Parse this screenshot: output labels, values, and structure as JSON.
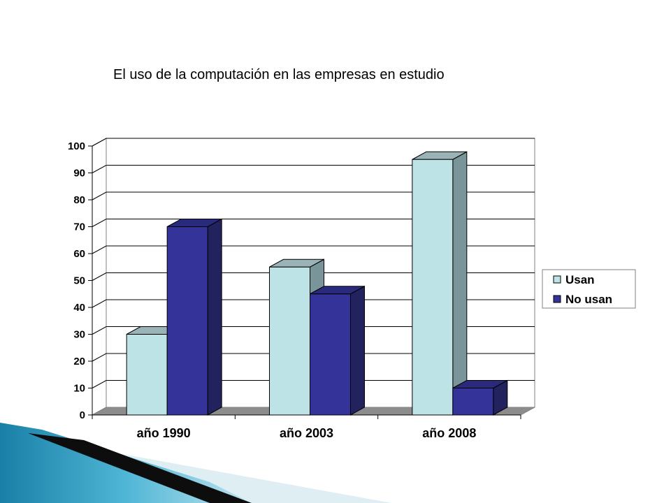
{
  "slide": {
    "title": "El uso de la computación en las empresas en estudio"
  },
  "chart_data": {
    "type": "bar",
    "title": "",
    "xlabel": "",
    "ylabel": "",
    "categories": [
      "año 1990",
      "año 2003",
      "año 2008"
    ],
    "series": [
      {
        "name": "Usan",
        "values": [
          30,
          55,
          95
        ],
        "color": "#bde3e6",
        "side_color": "#7a9599",
        "top_color": "#9ab3b6"
      },
      {
        "name": "No usan",
        "values": [
          70,
          45,
          10
        ],
        "color": "#333399",
        "side_color": "#22225f",
        "top_color": "#2a2a7c"
      }
    ],
    "ylim": [
      0,
      100
    ],
    "yticks": [
      0,
      10,
      20,
      30,
      40,
      50,
      60,
      70,
      80,
      90,
      100
    ],
    "grid": true,
    "legend_position": "right",
    "floor_color": "#8c8c8c"
  }
}
